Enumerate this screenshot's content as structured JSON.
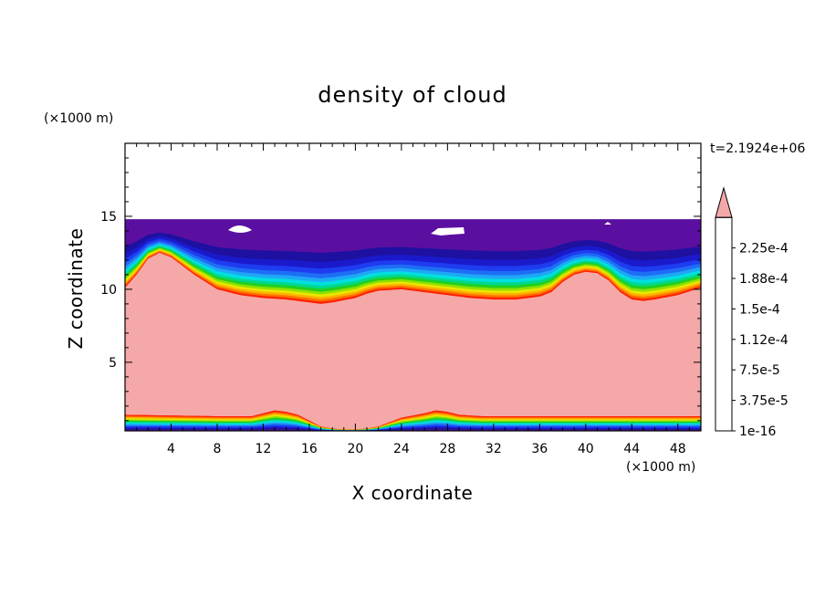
{
  "chart_data": {
    "type": "heatmap",
    "title": "density of cloud",
    "xlabel": "X coordinate",
    "ylabel": "Z coordinate",
    "x_unit": "(×1000 m)",
    "y_unit": "(×1000 m)",
    "time_label": "t=2.1924e+06",
    "xlim": [
      0,
      50
    ],
    "ylim": [
      0.3,
      20
    ],
    "x_ticks": [
      4,
      8,
      12,
      16,
      20,
      24,
      28,
      32,
      36,
      40,
      44,
      48
    ],
    "y_ticks": [
      5,
      10,
      15
    ],
    "cloud_top": 14.8,
    "upper_band_base_profile": [
      [
        0,
        10.1
      ],
      [
        1,
        11.0
      ],
      [
        2,
        12.1
      ],
      [
        3,
        12.5
      ],
      [
        4,
        12.2
      ],
      [
        5,
        11.6
      ],
      [
        6,
        11.0
      ],
      [
        7,
        10.5
      ],
      [
        8,
        10.0
      ],
      [
        9,
        9.8
      ],
      [
        10,
        9.6
      ],
      [
        12,
        9.4
      ],
      [
        14,
        9.3
      ],
      [
        16,
        9.1
      ],
      [
        17,
        9.0
      ],
      [
        18,
        9.1
      ],
      [
        20,
        9.4
      ],
      [
        21,
        9.7
      ],
      [
        22,
        9.9
      ],
      [
        24,
        10.0
      ],
      [
        26,
        9.8
      ],
      [
        28,
        9.6
      ],
      [
        30,
        9.4
      ],
      [
        32,
        9.3
      ],
      [
        34,
        9.3
      ],
      [
        36,
        9.5
      ],
      [
        37,
        9.8
      ],
      [
        38,
        10.5
      ],
      [
        39,
        11.0
      ],
      [
        40,
        11.2
      ],
      [
        41,
        11.1
      ],
      [
        42,
        10.6
      ],
      [
        43,
        9.8
      ],
      [
        44,
        9.3
      ],
      [
        45,
        9.2
      ],
      [
        46,
        9.3
      ],
      [
        48,
        9.6
      ],
      [
        50,
        10.1
      ]
    ],
    "lower_band_top_profile": [
      [
        0,
        1.4
      ],
      [
        8,
        1.3
      ],
      [
        11,
        1.3
      ],
      [
        12,
        1.5
      ],
      [
        13,
        1.7
      ],
      [
        14,
        1.6
      ],
      [
        15,
        1.4
      ],
      [
        16,
        1.0
      ],
      [
        17,
        0.6
      ],
      [
        18,
        0.45
      ],
      [
        19,
        0.4
      ],
      [
        20,
        0.4
      ],
      [
        21,
        0.45
      ],
      [
        22,
        0.6
      ],
      [
        23,
        0.9
      ],
      [
        24,
        1.2
      ],
      [
        26,
        1.5
      ],
      [
        27,
        1.7
      ],
      [
        28,
        1.6
      ],
      [
        29,
        1.4
      ],
      [
        31,
        1.3
      ],
      [
        40,
        1.3
      ],
      [
        50,
        1.3
      ]
    ],
    "colorbar": {
      "labels": [
        "2.25e-4",
        "1.88e-4",
        "1.5e-4",
        "1.12e-4",
        "7.5e-5",
        "3.75e-5",
        "1e-16"
      ],
      "levels": [
        1e-16,
        1.875e-05,
        3.75e-05,
        5.625e-05,
        7.5e-05,
        9.375e-05,
        0.0001125,
        0.00013125,
        0.00015,
        0.00016875,
        0.0001875,
        0.00020625,
        0.000225,
        0.00024375
      ],
      "colors": [
        "#5a0fa0",
        "#1e10a0",
        "#1a1acc",
        "#1e3cf0",
        "#1e6ef5",
        "#1ea8f5",
        "#00e0e0",
        "#00d890",
        "#20d020",
        "#90e000",
        "#e8e800",
        "#ffb000",
        "#ff7000",
        "#ff2000"
      ],
      "overflow_color": "#f5a8a8"
    }
  }
}
